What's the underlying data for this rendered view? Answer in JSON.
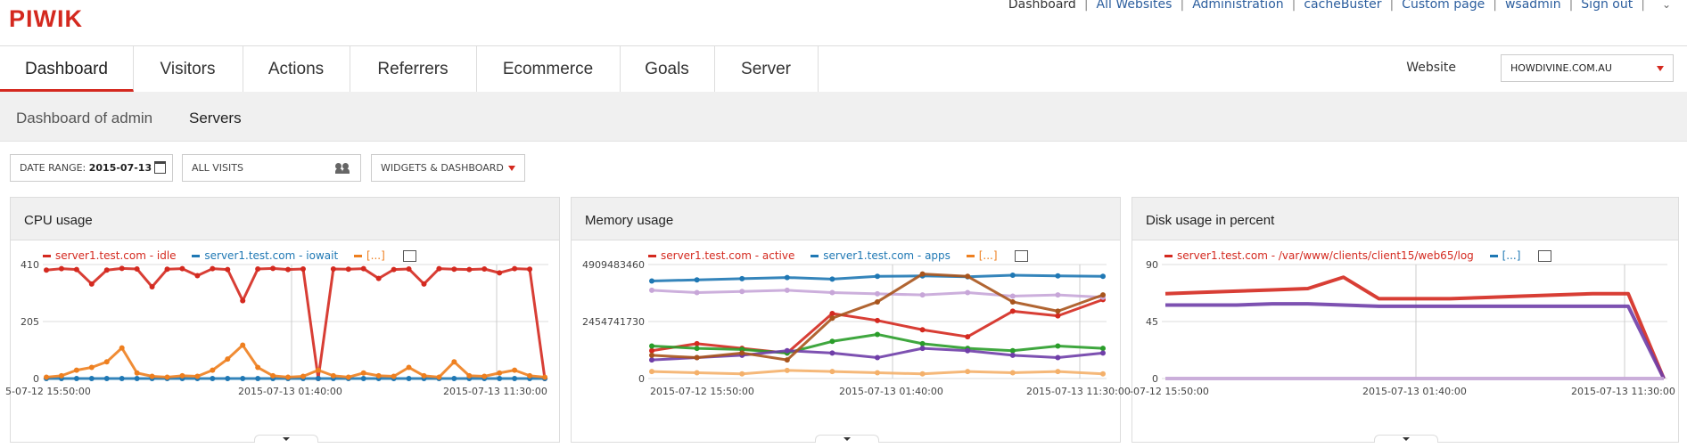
{
  "app": {
    "logo": "PIWIK"
  },
  "toplinks": {
    "dashboard": "Dashboard",
    "all_websites": "All Websites",
    "administration": "Administration",
    "cachebuster": "cacheBuster",
    "custom_page": "Custom page",
    "user": "wsadmin",
    "sign_out": "Sign out"
  },
  "tabs": [
    "Dashboard",
    "Visitors",
    "Actions",
    "Referrers",
    "Ecommerce",
    "Goals",
    "Server"
  ],
  "website": {
    "label": "Website",
    "selected": "HOWDIVINE.COM.AU"
  },
  "subnav": {
    "dashboard_of": "Dashboard of admin",
    "servers": "Servers"
  },
  "controls": {
    "date_range_label": "DATE RANGE:",
    "date_range_value": "2015-07-13",
    "segment": "ALL VISITS",
    "widgets": "WIDGETS & DASHBOARD"
  },
  "colors": {
    "accent": "#d4291f",
    "link": "#2c5e9e",
    "series": [
      "#d4291f",
      "#1f78b4",
      "#ee7f1f",
      "#c7a6d8",
      "#2a9d2a",
      "#6f3ea8",
      "#a8541c",
      "#f4b06a"
    ]
  },
  "widgets": [
    {
      "title": "CPU usage",
      "legend": [
        "server1.test.com - idle",
        "server1.test.com - iowait",
        "[...]"
      ]
    },
    {
      "title": "Memory usage",
      "legend": [
        "server1.test.com - active",
        "server1.test.com - apps",
        "[...]"
      ]
    },
    {
      "title": "Disk usage in percent",
      "legend": [
        "server1.test.com - /var/www/clients/client15/web65/log",
        "[...]"
      ]
    }
  ],
  "chart_data": [
    {
      "type": "line",
      "title": "CPU usage",
      "y_ticks": [
        "410",
        "205",
        "0"
      ],
      "ylim": [
        0,
        410
      ],
      "x_ticks": [
        "5-07-12 15:50:00",
        "2015-07-13 01:40:00",
        "2015-07-13 11:30:00"
      ],
      "grid": true,
      "legend_placement": "top-left",
      "series": [
        {
          "name": "server1.test.com - idle",
          "values": [
            390,
            395,
            392,
            340,
            390,
            396,
            394,
            330,
            393,
            395,
            370,
            395,
            392,
            280,
            394,
            396,
            392,
            394,
            0,
            394,
            393,
            395,
            360,
            392,
            394,
            340,
            395,
            393,
            392,
            394,
            380,
            395,
            393,
            0
          ]
        },
        {
          "name": "server1.test.com - iowait",
          "values": [
            0,
            0,
            0,
            0,
            0,
            0,
            0,
            0,
            0,
            0,
            0,
            0,
            0,
            0,
            0,
            0,
            0,
            0,
            0,
            0,
            0,
            0,
            0,
            0,
            0,
            0,
            0,
            0,
            0,
            0,
            0,
            0,
            0,
            0
          ]
        },
        {
          "values": [
            5,
            10,
            30,
            40,
            60,
            110,
            20,
            8,
            5,
            10,
            8,
            30,
            70,
            120,
            40,
            10,
            5,
            8,
            30,
            10,
            5,
            20,
            10,
            8,
            40,
            10,
            5,
            60,
            10,
            8,
            20,
            30,
            10,
            5
          ]
        }
      ]
    },
    {
      "type": "line",
      "title": "Memory usage",
      "y_ticks": [
        "4909483460",
        "2454741730",
        "0"
      ],
      "ylim": [
        0,
        4909483460
      ],
      "x_ticks": [
        "2015-07-12 15:50:00",
        "2015-07-13 01:40:00",
        "2015-07-13 11:30:00"
      ],
      "grid": true,
      "legend_placement": "top-left",
      "series": [
        {
          "name": "server1.test.com - active",
          "values": [
            1200000000,
            1500000000,
            1300000000,
            1100000000,
            2800000000,
            2500000000,
            2100000000,
            1800000000,
            2900000000,
            2700000000,
            3400000000
          ]
        },
        {
          "name": "server1.test.com - apps",
          "values": [
            4200000000,
            4250000000,
            4300000000,
            4350000000,
            4280000000,
            4400000000,
            4420000000,
            4380000000,
            4450000000,
            4420000000,
            4400000000
          ]
        },
        {
          "values": [
            300000000,
            250000000,
            200000000,
            350000000,
            300000000,
            250000000,
            200000000,
            300000000,
            250000000,
            300000000,
            200000000
          ]
        },
        {
          "values": [
            3800000000,
            3700000000,
            3750000000,
            3800000000,
            3700000000,
            3650000000,
            3600000000,
            3700000000,
            3550000000,
            3600000000,
            3500000000
          ]
        },
        {
          "values": [
            1400000000,
            1300000000,
            1250000000,
            1100000000,
            1600000000,
            1900000000,
            1500000000,
            1300000000,
            1200000000,
            1400000000,
            1300000000
          ]
        },
        {
          "values": [
            800000000,
            900000000,
            1000000000,
            1200000000,
            1100000000,
            900000000,
            1300000000,
            1200000000,
            1000000000,
            900000000,
            1100000000
          ]
        },
        {
          "values": [
            1000000000,
            900000000,
            1100000000,
            800000000,
            2600000000,
            3300000000,
            4500000000,
            4400000000,
            3300000000,
            2900000000,
            3600000000
          ]
        }
      ]
    },
    {
      "type": "line",
      "title": "Disk usage in percent",
      "y_ticks": [
        "90",
        "45",
        "0"
      ],
      "ylim": [
        0,
        90
      ],
      "x_ticks": [
        "-07-12 15:50:00",
        "2015-07-13 01:40:00",
        "2015-07-13 11:30:00"
      ],
      "grid": true,
      "legend_placement": "top-left",
      "series": [
        {
          "name": "server1.test.com - /var/www/clients/client15/web65/log",
          "values": [
            67,
            68,
            69,
            70,
            71,
            80,
            63,
            63,
            63,
            64,
            65,
            66,
            67,
            67,
            0
          ]
        },
        {
          "values": [
            58,
            58,
            58,
            59,
            59,
            58,
            57,
            57,
            57,
            57,
            57,
            57,
            57,
            57,
            0
          ]
        },
        {
          "values": [
            0,
            0,
            0,
            0,
            0,
            0,
            0,
            0,
            0,
            0,
            0,
            0,
            0,
            0,
            0
          ]
        }
      ]
    }
  ]
}
